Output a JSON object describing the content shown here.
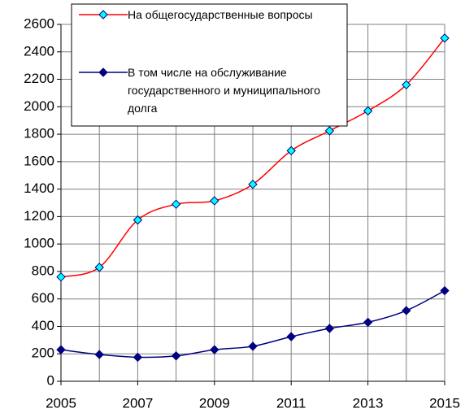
{
  "chart_data": {
    "type": "line",
    "x": [
      2005,
      2006,
      2007,
      2008,
      2009,
      2010,
      2011,
      2012,
      2013,
      2014,
      2015
    ],
    "series": [
      {
        "name": "На общегосударственные вопросы",
        "color": "#ff0000",
        "marker_color": "#00ffff",
        "values": [
          760,
          830,
          1175,
          1290,
          1315,
          1435,
          1680,
          1825,
          1970,
          2160,
          2500
        ]
      },
      {
        "name": "В том числе на обслуживание государственного и муниципального долга",
        "color": "#000080",
        "marker_color": "#000080",
        "values": [
          230,
          195,
          175,
          185,
          230,
          255,
          325,
          385,
          430,
          515,
          660
        ]
      }
    ],
    "xlim": [
      2005,
      2015
    ],
    "xticks": [
      2005,
      2007,
      2009,
      2011,
      2013,
      2015
    ],
    "ylim": [
      0,
      2600
    ],
    "yticks": [
      0,
      200,
      400,
      600,
      800,
      1000,
      1200,
      1400,
      1600,
      1800,
      2000,
      2200,
      2400,
      2600
    ],
    "grid": true,
    "legend": "top"
  }
}
